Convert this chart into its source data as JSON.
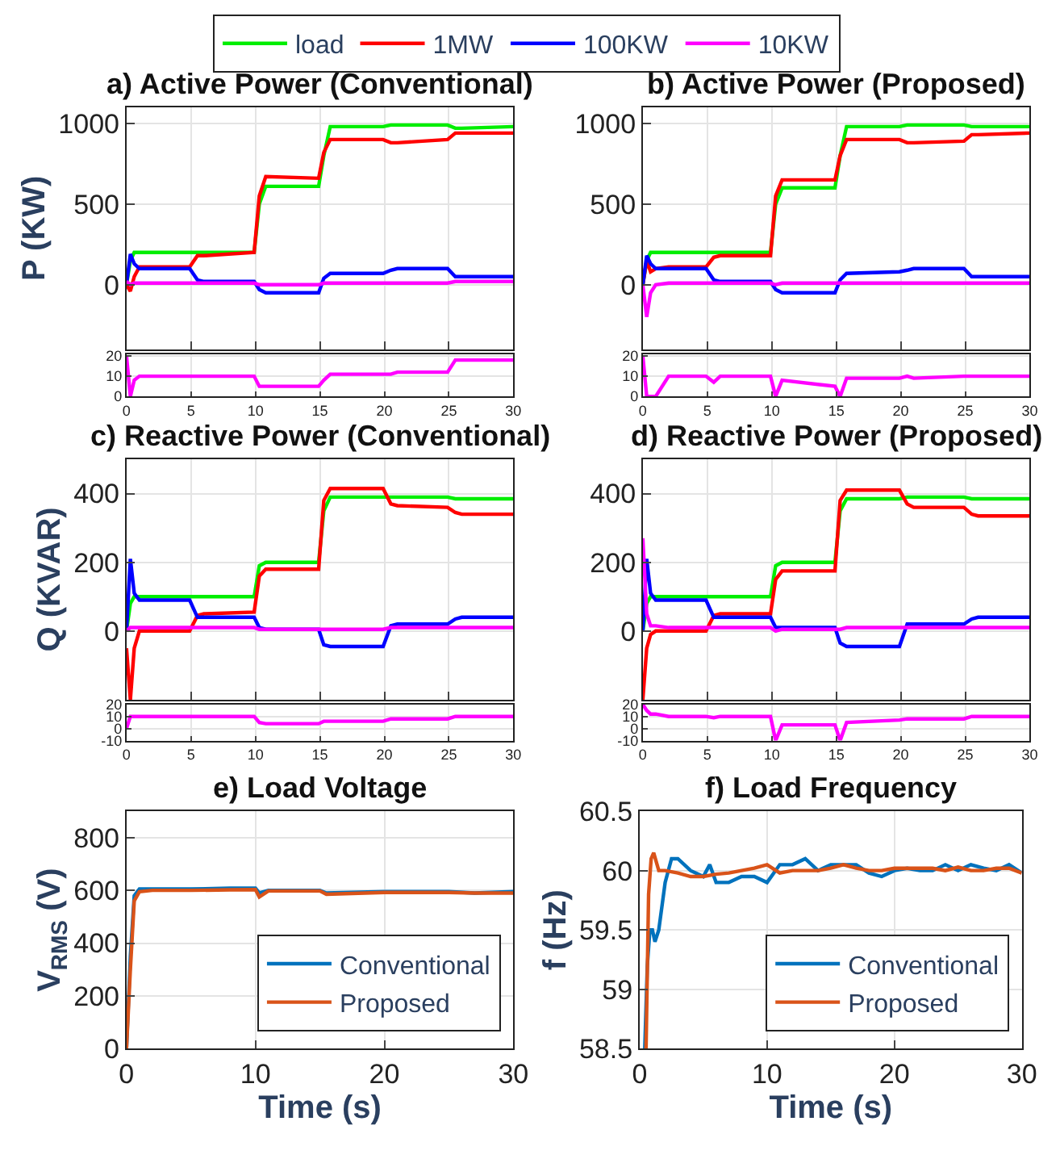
{
  "chart_data": [
    {
      "type": "line",
      "title": "a) Active Power (Conventional)",
      "ylabel": "P (KW)",
      "x": [
        0,
        0.3,
        0.6,
        1,
        2,
        4.9,
        5.5,
        6,
        9.9,
        10.3,
        10.8,
        14.9,
        15.3,
        15.8,
        19.9,
        20.5,
        21,
        24.9,
        25.5,
        26,
        30
      ],
      "xlim": [
        0,
        30
      ],
      "xticks": [
        0,
        5,
        10,
        15,
        20,
        25,
        30
      ],
      "ylim": [
        -400,
        1100
      ],
      "yticks": [
        0,
        500,
        1000
      ],
      "tick_labels": "y",
      "grid": true,
      "legend": "top",
      "marker": "none",
      "line_style": "solid",
      "series": [
        {
          "name": "load",
          "color": "#00ee00",
          "values": [
            0,
            150,
            200,
            200,
            200,
            200,
            200,
            200,
            200,
            500,
            610,
            610,
            800,
            980,
            980,
            990,
            990,
            990,
            970,
            970,
            980
          ]
        },
        {
          "name": "1MW",
          "color": "#ff0000",
          "values": [
            0,
            -40,
            50,
            110,
            110,
            110,
            180,
            180,
            200,
            550,
            670,
            660,
            820,
            900,
            900,
            880,
            880,
            900,
            940,
            940,
            940
          ]
        },
        {
          "name": "100KW",
          "color": "#0000ff",
          "values": [
            0,
            190,
            130,
            100,
            100,
            100,
            30,
            20,
            20,
            -30,
            -50,
            -50,
            40,
            70,
            70,
            90,
            100,
            100,
            50,
            50,
            50
          ]
        },
        {
          "name": "10KW",
          "color": "#ff00ff",
          "values": [
            20,
            0,
            10,
            10,
            10,
            10,
            10,
            10,
            10,
            0,
            0,
            0,
            10,
            10,
            10,
            10,
            10,
            10,
            20,
            20,
            20
          ]
        }
      ]
    },
    {
      "type": "line",
      "title": "b) Active Power (Proposed)",
      "x": [
        0,
        0.3,
        0.6,
        1,
        2,
        4.9,
        5.5,
        6,
        9.9,
        10.3,
        10.8,
        14.9,
        15.3,
        15.8,
        19.9,
        20.5,
        21,
        24.9,
        25.5,
        26,
        30
      ],
      "xlim": [
        0,
        30
      ],
      "xticks": [
        0,
        5,
        10,
        15,
        20,
        25,
        30
      ],
      "ylim": [
        -400,
        1100
      ],
      "yticks": [
        0,
        500,
        1000
      ],
      "tick_labels": "y",
      "grid": true,
      "marker": "none",
      "line_style": "solid",
      "series": [
        {
          "color": "#00ee00",
          "values": [
            0,
            150,
            200,
            200,
            200,
            200,
            200,
            200,
            200,
            500,
            600,
            600,
            800,
            980,
            980,
            990,
            990,
            990,
            980,
            980,
            980
          ]
        },
        {
          "color": "#ff0000",
          "values": [
            0,
            150,
            80,
            100,
            110,
            110,
            170,
            180,
            180,
            550,
            650,
            650,
            800,
            900,
            900,
            880,
            880,
            890,
            930,
            930,
            940
          ]
        },
        {
          "color": "#0000ff",
          "values": [
            0,
            180,
            130,
            100,
            100,
            100,
            30,
            20,
            20,
            -30,
            -50,
            -50,
            30,
            70,
            80,
            90,
            100,
            100,
            50,
            50,
            50
          ]
        },
        {
          "color": "#ff00ff",
          "values": [
            0,
            -200,
            -50,
            0,
            10,
            10,
            10,
            10,
            10,
            0,
            10,
            10,
            10,
            10,
            10,
            10,
            10,
            10,
            10,
            10,
            10
          ]
        }
      ]
    },
    {
      "type": "line",
      "x": [
        0,
        0.3,
        0.6,
        1,
        2,
        4.9,
        5.5,
        6,
        9.9,
        10.3,
        10.8,
        14.9,
        15.3,
        15.8,
        19.9,
        20.5,
        21,
        24.9,
        25.5,
        26,
        30
      ],
      "xlim": [
        0,
        30
      ],
      "xticks": [
        0,
        5,
        10,
        15,
        20,
        25,
        30
      ],
      "ylim": [
        0,
        21
      ],
      "yticks": [
        0,
        10,
        20
      ],
      "grid": true,
      "marker": "none",
      "line_style": "solid",
      "series": [
        {
          "color": "#ff00ff",
          "values": [
            20,
            0,
            8,
            10,
            10,
            10,
            10,
            10,
            10,
            5,
            5,
            5,
            8,
            11,
            11,
            11,
            12,
            12,
            18,
            18,
            18
          ]
        }
      ]
    },
    {
      "type": "line",
      "x": [
        0,
        0.3,
        0.6,
        1,
        2,
        4.9,
        5.5,
        6,
        9.9,
        10.3,
        10.8,
        14.9,
        15.3,
        15.8,
        19.9,
        20.5,
        21,
        24.9,
        25.5,
        26,
        30
      ],
      "xlim": [
        0,
        30
      ],
      "xticks": [
        0,
        5,
        10,
        15,
        20,
        25,
        30
      ],
      "ylim": [
        0,
        21
      ],
      "yticks": [
        0,
        10,
        20
      ],
      "grid": true,
      "marker": "none",
      "line_style": "solid",
      "series": [
        {
          "color": "#ff00ff",
          "values": [
            20,
            0,
            0,
            0,
            10,
            10,
            7,
            10,
            10,
            0,
            8,
            5,
            0,
            9,
            9,
            10,
            9,
            10,
            10,
            10,
            10
          ]
        }
      ]
    },
    {
      "type": "line",
      "title": "c) Reactive Power (Conventional)",
      "ylabel": "Q (KVAR)",
      "x": [
        0,
        0.3,
        0.6,
        1,
        2,
        4.9,
        5.5,
        6,
        9.9,
        10.3,
        10.8,
        14.9,
        15.3,
        15.8,
        19.9,
        20.5,
        21,
        24.9,
        25.5,
        26,
        30
      ],
      "xlim": [
        0,
        30
      ],
      "xticks": [
        0,
        5,
        10,
        15,
        20,
        25,
        30
      ],
      "ylim": [
        -200,
        500
      ],
      "yticks": [
        0,
        200,
        400
      ],
      "tick_labels": "y",
      "grid": true,
      "marker": "none",
      "line_style": "solid",
      "series": [
        {
          "color": "#00ee00",
          "values": [
            0,
            80,
            100,
            100,
            100,
            100,
            100,
            100,
            100,
            190,
            200,
            200,
            350,
            390,
            390,
            390,
            390,
            390,
            385,
            385,
            385
          ]
        },
        {
          "color": "#ff0000",
          "values": [
            -50,
            -200,
            -50,
            0,
            0,
            0,
            45,
            50,
            55,
            160,
            180,
            180,
            380,
            415,
            415,
            370,
            365,
            360,
            345,
            340,
            340
          ]
        },
        {
          "color": "#0000ff",
          "values": [
            0,
            210,
            110,
            90,
            90,
            90,
            40,
            40,
            40,
            10,
            5,
            5,
            -40,
            -45,
            -45,
            15,
            20,
            20,
            35,
            40,
            40
          ]
        },
        {
          "color": "#ff00ff",
          "values": [
            0,
            10,
            10,
            10,
            10,
            10,
            10,
            10,
            10,
            5,
            5,
            5,
            5,
            5,
            5,
            10,
            10,
            10,
            10,
            10,
            10
          ]
        }
      ]
    },
    {
      "type": "line",
      "title": "d) Reactive Power (Proposed)",
      "x": [
        0,
        0.3,
        0.6,
        1,
        2,
        4.9,
        5.5,
        6,
        9.9,
        10.3,
        10.8,
        14.9,
        15.3,
        15.8,
        19.9,
        20.5,
        21,
        24.9,
        25.5,
        26,
        30
      ],
      "xlim": [
        0,
        30
      ],
      "xticks": [
        0,
        5,
        10,
        15,
        20,
        25,
        30
      ],
      "ylim": [
        -200,
        500
      ],
      "yticks": [
        0,
        200,
        400
      ],
      "tick_labels": "y",
      "grid": true,
      "marker": "none",
      "line_style": "solid",
      "series": [
        {
          "color": "#00ee00",
          "values": [
            0,
            80,
            100,
            100,
            100,
            100,
            100,
            100,
            100,
            190,
            200,
            200,
            350,
            385,
            385,
            390,
            390,
            390,
            385,
            385,
            385
          ]
        },
        {
          "color": "#ff0000",
          "values": [
            -200,
            -50,
            -10,
            0,
            0,
            0,
            45,
            50,
            50,
            150,
            175,
            175,
            380,
            410,
            410,
            370,
            360,
            360,
            340,
            335,
            335
          ]
        },
        {
          "color": "#0000ff",
          "values": [
            0,
            210,
            110,
            90,
            90,
            90,
            40,
            40,
            40,
            10,
            10,
            10,
            -35,
            -45,
            -45,
            20,
            20,
            20,
            35,
            40,
            40
          ]
        },
        {
          "color": "#ff00ff",
          "values": [
            270,
            50,
            15,
            15,
            10,
            10,
            10,
            10,
            10,
            0,
            5,
            5,
            5,
            10,
            10,
            10,
            10,
            10,
            10,
            10,
            10
          ]
        }
      ]
    },
    {
      "type": "line",
      "x": [
        0,
        0.3,
        0.6,
        1,
        2,
        4.9,
        5.5,
        6,
        9.9,
        10.3,
        10.8,
        14.9,
        15.3,
        15.8,
        19.9,
        20.5,
        21,
        24.9,
        25.5,
        26,
        30
      ],
      "xlim": [
        0,
        30
      ],
      "xticks": [
        0,
        5,
        10,
        15,
        20,
        25,
        30
      ],
      "ylim": [
        -10,
        20
      ],
      "yticks": [
        -10,
        0,
        10,
        20
      ],
      "grid": true,
      "marker": "none",
      "line_style": "solid",
      "series": [
        {
          "color": "#ff00ff",
          "values": [
            0,
            10,
            10,
            10,
            10,
            10,
            10,
            10,
            10,
            5,
            4,
            4,
            6,
            6,
            6,
            8,
            8,
            8,
            10,
            10,
            10
          ]
        }
      ]
    },
    {
      "type": "line",
      "x": [
        0,
        0.3,
        0.6,
        1,
        2,
        4.9,
        5.5,
        6,
        9.9,
        10.3,
        10.8,
        14.9,
        15.3,
        15.8,
        19.9,
        20.5,
        21,
        24.9,
        25.5,
        26,
        30
      ],
      "xlim": [
        0,
        30
      ],
      "xticks": [
        0,
        5,
        10,
        15,
        20,
        25,
        30
      ],
      "ylim": [
        -10,
        20
      ],
      "yticks": [
        -10,
        0,
        10,
        20
      ],
      "grid": true,
      "marker": "none",
      "line_style": "solid",
      "series": [
        {
          "color": "#ff00ff",
          "values": [
            20,
            15,
            12,
            12,
            10,
            10,
            9,
            10,
            10,
            -10,
            3,
            3,
            -10,
            5,
            7,
            8,
            8,
            8,
            10,
            10,
            10
          ]
        }
      ]
    },
    {
      "type": "line",
      "title": "e) Load Voltage",
      "xlabel": "Time (s)",
      "ylabel": "V$_{RMS}$ (V)",
      "x": [
        0,
        0.3,
        0.6,
        1,
        2,
        5,
        8,
        10,
        10.3,
        11,
        15,
        15.5,
        20,
        25,
        27,
        30
      ],
      "xlim": [
        0,
        30
      ],
      "xticks": [
        0,
        10,
        20,
        30
      ],
      "ylim": [
        0,
        900
      ],
      "yticks": [
        0,
        200,
        400,
        600,
        800
      ],
      "grid": true,
      "legend": "bottom right",
      "marker": "none",
      "line_style": "solid",
      "series": [
        {
          "name": "Conventional",
          "color": "#0072bd",
          "values": [
            0,
            350,
            580,
            605,
            605,
            605,
            608,
            608,
            590,
            600,
            600,
            590,
            595,
            595,
            590,
            595
          ]
        },
        {
          "name": "Proposed",
          "color": "#d95319",
          "values": [
            0,
            300,
            560,
            595,
            600,
            600,
            602,
            603,
            575,
            598,
            598,
            585,
            592,
            592,
            590,
            590
          ]
        }
      ]
    },
    {
      "type": "line",
      "title": "f) Load Frequency",
      "xlabel": "Time (s)",
      "ylabel": "f (Hz)",
      "xlim": [
        0,
        30
      ],
      "xticks": [
        0,
        10,
        20,
        30
      ],
      "ylim": [
        58.5,
        60.5
      ],
      "yticks": [
        58.5,
        59,
        59.5,
        60,
        60.5
      ],
      "grid": true,
      "legend": "bottom right",
      "marker": "none",
      "line_style": "solid",
      "series": [
        {
          "name": "Conventional",
          "color": "#0072bd",
          "x": [
            0.4,
            0.6,
            0.8,
            1,
            1.2,
            1.5,
            2,
            2.5,
            3,
            4,
            5,
            5.5,
            6,
            7,
            8,
            9,
            10,
            11,
            12,
            13,
            14,
            15,
            16,
            17,
            18,
            19,
            20,
            21,
            22,
            23,
            24,
            25,
            26,
            27,
            28,
            29,
            30
          ],
          "values": [
            58.5,
            59.2,
            59.5,
            59.5,
            59.4,
            59.5,
            59.9,
            60.1,
            60.1,
            60.0,
            59.95,
            60.05,
            59.9,
            59.9,
            59.95,
            59.95,
            59.9,
            60.05,
            60.05,
            60.1,
            60.0,
            60.05,
            60.05,
            60.05,
            59.98,
            59.95,
            60.0,
            60.02,
            60.0,
            60.0,
            60.05,
            60.0,
            60.05,
            60.02,
            60.0,
            60.05,
            59.98
          ]
        },
        {
          "name": "Proposed",
          "color": "#d95319",
          "x": [
            0.5,
            0.7,
            0.9,
            1.1,
            1.5,
            2,
            3,
            4,
            5,
            6,
            7,
            8,
            9,
            10,
            11,
            12,
            13,
            14,
            15,
            16,
            17,
            18,
            19,
            20,
            21,
            22,
            23,
            24,
            25,
            26,
            27,
            28,
            29,
            30
          ],
          "values": [
            58.5,
            59.8,
            60.1,
            60.15,
            60.0,
            60.0,
            59.98,
            59.95,
            59.95,
            59.97,
            59.98,
            60.0,
            60.02,
            60.05,
            59.98,
            60.0,
            60.0,
            60.0,
            60.02,
            60.05,
            60.02,
            60.0,
            60.0,
            60.02,
            60.02,
            60.02,
            60.02,
            60.0,
            60.03,
            60.0,
            60.0,
            60.02,
            60.02,
            59.98
          ]
        }
      ]
    }
  ]
}
